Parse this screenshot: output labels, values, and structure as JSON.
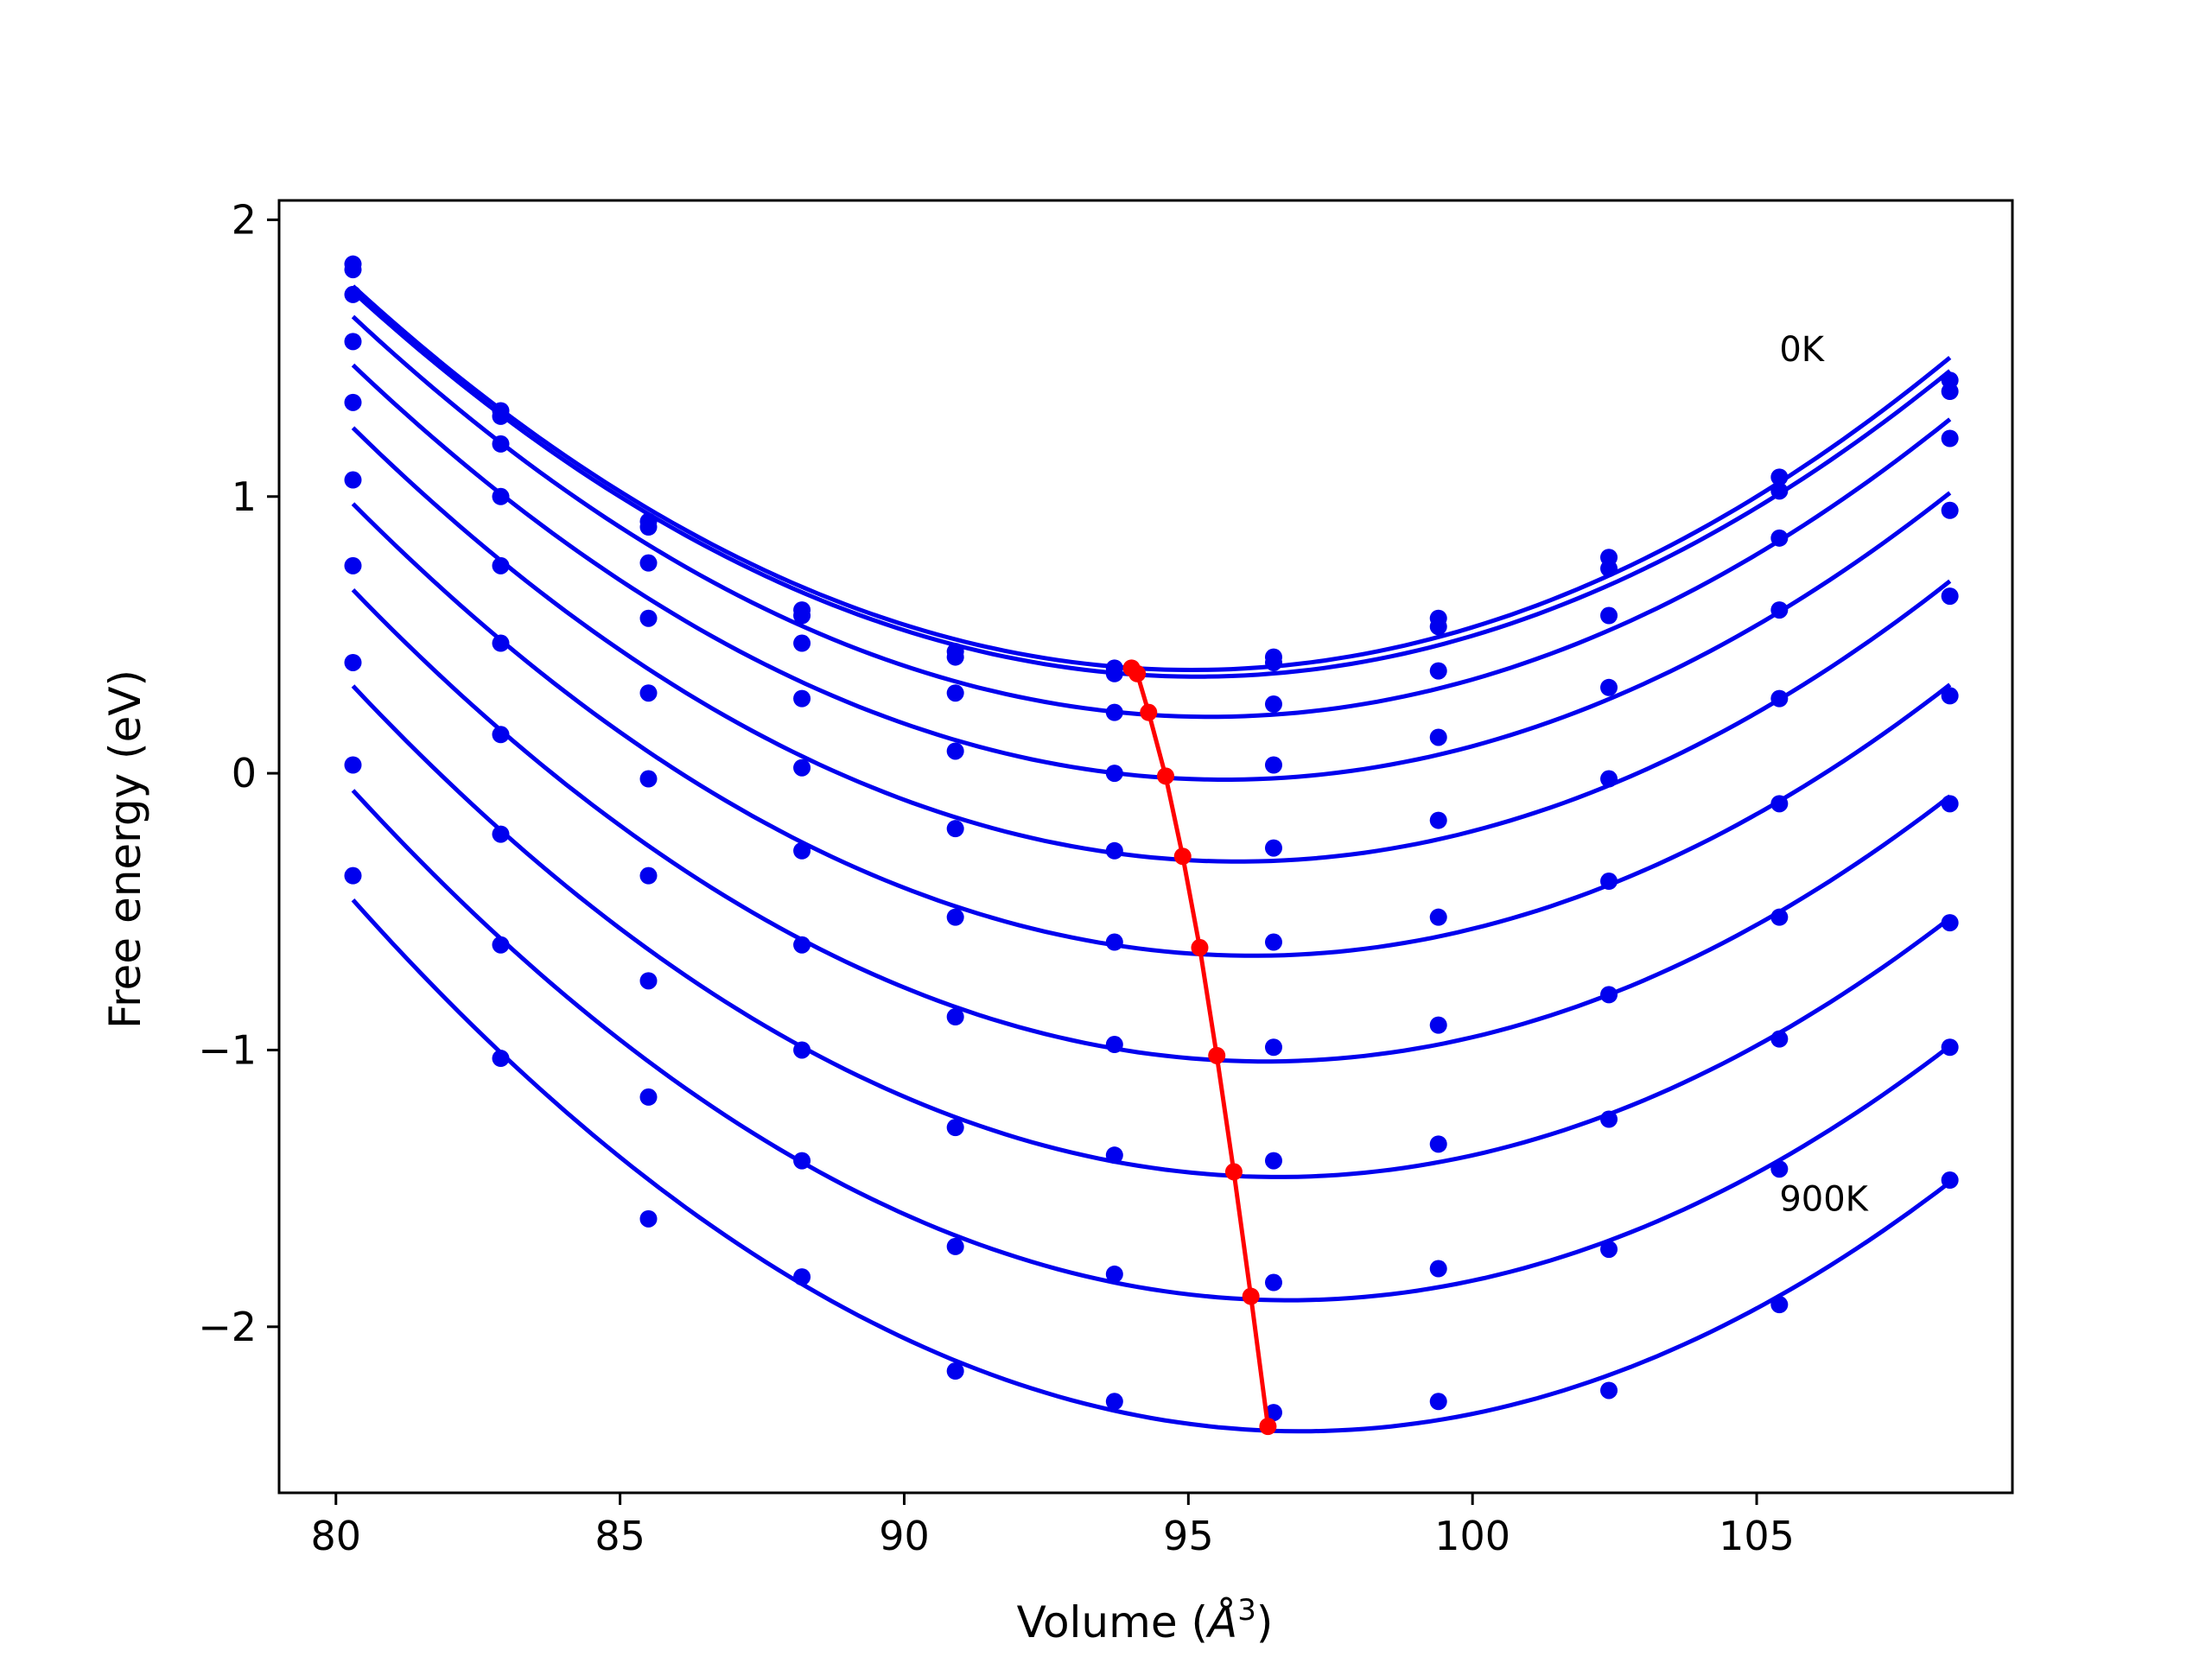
{
  "chart_data": {
    "type": "line",
    "title": "",
    "xlabel": "Volume (Å³)",
    "xlabel_base": "Volume (",
    "xlabel_unit": "Å",
    "xlabel_exp": "3",
    "xlabel_close": ")",
    "ylabel": "Free energy (eV)",
    "xlim": [
      79,
      109.5
    ],
    "ylim": [
      -2.6,
      2.07
    ],
    "x_ticks": [
      80,
      85,
      90,
      95,
      100,
      105
    ],
    "x_tick_labels": [
      "80",
      "85",
      "90",
      "95",
      "100",
      "105"
    ],
    "y_ticks": [
      -2,
      -1,
      0,
      1,
      2
    ],
    "y_tick_labels": [
      "−2",
      "−1",
      "0",
      "1",
      "2"
    ],
    "grid": false,
    "colors": {
      "fit": "#0000ee",
      "points": "#0000ee",
      "minima": "#ff0000"
    },
    "x": [
      80.3,
      82.9,
      85.5,
      88.2,
      90.9,
      93.7,
      96.5,
      99.4,
      102.4,
      105.4,
      108.4
    ],
    "series": [
      {
        "temperature": "0K",
        "points": [
          1.84,
          1.31,
          0.91,
          0.59,
          0.44,
          0.38,
          0.42,
          0.56,
          0.78,
          1.07,
          1.42
        ],
        "minimum": [
          94.0,
          0.38
        ]
      },
      {
        "points": [
          1.82,
          1.29,
          0.89,
          0.57,
          0.42,
          0.36,
          0.4,
          0.53,
          0.74,
          1.02,
          1.38
        ],
        "minimum": [
          94.1,
          0.36
        ]
      },
      {
        "points": [
          1.73,
          1.19,
          0.76,
          0.47,
          0.29,
          0.22,
          0.25,
          0.37,
          0.57,
          0.85,
          1.21
        ],
        "minimum": [
          94.3,
          0.22
        ]
      },
      {
        "points": [
          1.56,
          1.0,
          0.56,
          0.27,
          0.08,
          0.0,
          0.03,
          0.13,
          0.31,
          0.59,
          0.95
        ],
        "minimum": [
          94.6,
          -0.01
        ]
      },
      {
        "points": [
          1.34,
          0.75,
          0.29,
          0.02,
          -0.2,
          -0.28,
          -0.27,
          -0.17,
          -0.02,
          0.27,
          0.64
        ],
        "minimum": [
          94.9,
          -0.3
        ]
      },
      {
        "points": [
          1.06,
          0.47,
          -0.02,
          -0.28,
          -0.52,
          -0.61,
          -0.61,
          -0.52,
          -0.39,
          -0.11,
          0.28
        ],
        "minimum": [
          95.2,
          -0.63
        ]
      },
      {
        "points": [
          0.75,
          0.14,
          -0.37,
          -0.62,
          -0.88,
          -0.98,
          -0.99,
          -0.91,
          -0.8,
          -0.52,
          -0.11
        ],
        "minimum": [
          95.5,
          -1.02
        ]
      },
      {
        "points": [
          0.4,
          -0.22,
          -0.75,
          -1.0,
          -1.28,
          -1.38,
          -1.4,
          -1.34,
          -1.25,
          -0.96,
          -0.54
        ],
        "minimum": [
          95.8,
          -1.44
        ]
      },
      {
        "points": [
          0.03,
          -0.62,
          -1.17,
          -1.4,
          -1.71,
          -1.81,
          -1.84,
          -1.79,
          -1.72,
          -1.43,
          -0.99
        ],
        "minimum": [
          96.1,
          -1.89
        ]
      },
      {
        "temperature": "900K",
        "points": [
          -0.37,
          -1.03,
          -1.61,
          -1.82,
          -2.16,
          -2.27,
          -2.31,
          -2.27,
          -2.23,
          -1.92,
          -1.47
        ],
        "minimum": [
          96.4,
          -2.36
        ]
      }
    ],
    "annotations": [
      {
        "text": "0K",
        "x": 105.4,
        "y": 1.49
      },
      {
        "text": "900K",
        "x": 105.4,
        "y": -1.58
      }
    ]
  }
}
